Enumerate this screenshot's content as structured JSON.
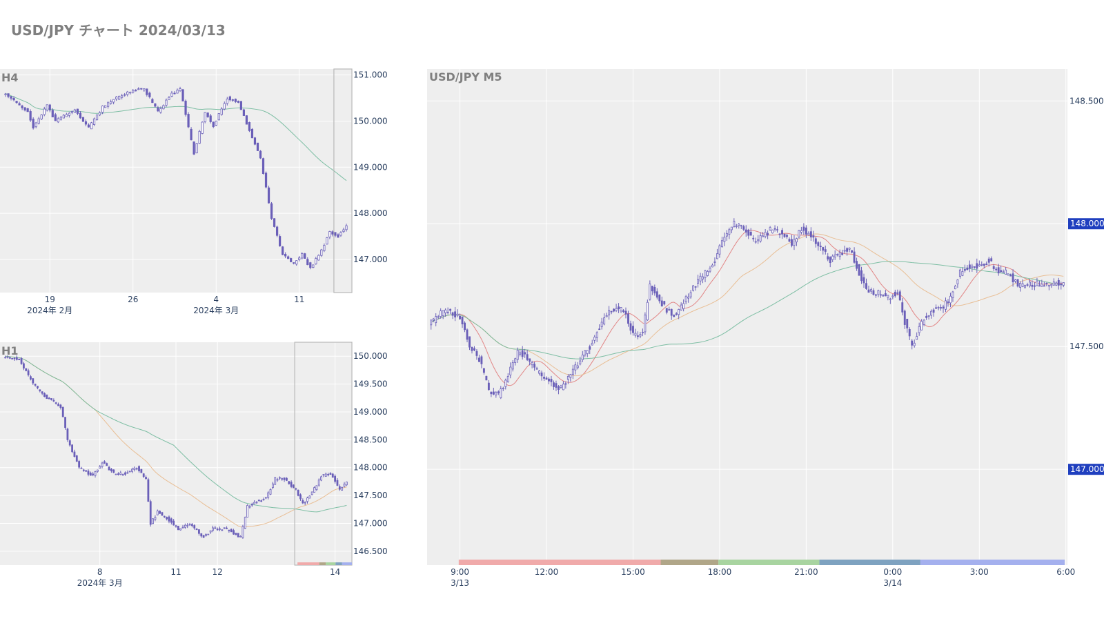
{
  "page": {
    "title": "USD/JPY チャート 2024/03/13"
  },
  "colors": {
    "plot_bg": "#eeeeee",
    "grid": "#ffffff",
    "candle": "#6a5fb8",
    "ma_short": "#e07a7a",
    "ma_mid": "#e8b88a",
    "ma_long": "#6fb89a",
    "badge": "#1f3fbf",
    "range_box": "#b8b8b8",
    "sessions": [
      "#f0aaaa",
      "#b0a688",
      "#a8d4a0",
      "#7ea2c0",
      "#a4b0ee"
    ]
  },
  "chart_data": [
    {
      "id": "h4",
      "type": "candlestick",
      "title": "H4",
      "ylim": [
        146.28,
        151.13
      ],
      "y_ticks": [
        151.0,
        150.0,
        149.0,
        148.0,
        147.0
      ],
      "y_tick_labels": [
        "151.000",
        "150.000",
        "149.000",
        "148.000",
        "147.000"
      ],
      "x_ticks": [
        {
          "i": 16,
          "label": "19",
          "sub": "2024年 2月"
        },
        {
          "i": 46,
          "label": "26",
          "sub": ""
        },
        {
          "i": 76,
          "label": "4",
          "sub": "2024年 3月"
        },
        {
          "i": 106,
          "label": "11",
          "sub": ""
        }
      ],
      "n": 124,
      "ma_lines": [
        "ma_long"
      ],
      "highlight_from": 119,
      "anchors": [
        [
          0,
          150.6
        ],
        [
          8,
          150.2
        ],
        [
          10,
          149.85
        ],
        [
          15,
          150.35
        ],
        [
          18,
          150.0
        ],
        [
          25,
          150.25
        ],
        [
          30,
          149.85
        ],
        [
          35,
          150.3
        ],
        [
          40,
          150.5
        ],
        [
          45,
          150.65
        ],
        [
          50,
          150.7
        ],
        [
          55,
          150.2
        ],
        [
          60,
          150.6
        ],
        [
          63,
          150.7
        ],
        [
          66,
          149.85
        ],
        [
          68,
          149.3
        ],
        [
          72,
          150.2
        ],
        [
          75,
          149.9
        ],
        [
          80,
          150.5
        ],
        [
          84,
          150.4
        ],
        [
          88,
          149.8
        ],
        [
          92,
          149.2
        ],
        [
          96,
          147.9
        ],
        [
          100,
          147.1
        ],
        [
          104,
          146.9
        ],
        [
          107,
          147.1
        ],
        [
          110,
          146.8
        ],
        [
          114,
          147.2
        ],
        [
          117,
          147.6
        ],
        [
          120,
          147.5
        ],
        [
          123,
          147.75
        ]
      ]
    },
    {
      "id": "h1",
      "type": "candlestick",
      "title": "H1",
      "ylim": [
        146.25,
        150.25
      ],
      "y_ticks": [
        150.0,
        149.5,
        149.0,
        148.5,
        148.0,
        147.5,
        147.0,
        146.5
      ],
      "y_tick_labels": [
        "150.000",
        "149.500",
        "149.000",
        "148.500",
        "148.000",
        "147.500",
        "147.000",
        "146.500"
      ],
      "x_ticks": [
        {
          "i": 41,
          "label": "8",
          "sub": "2024年 3月"
        },
        {
          "i": 74,
          "label": "11",
          "sub": ""
        },
        {
          "i": 92,
          "label": "12",
          "sub": ""
        },
        {
          "i": 143,
          "label": "14",
          "sub": ""
        }
      ],
      "n": 149,
      "ma_lines": [
        "ma_mid",
        "ma_long"
      ],
      "highlight_from": 126,
      "session_strip": true,
      "anchors": [
        [
          0,
          150.0
        ],
        [
          6,
          149.95
        ],
        [
          12,
          149.5
        ],
        [
          18,
          149.25
        ],
        [
          24,
          149.1
        ],
        [
          27,
          148.5
        ],
        [
          32,
          148.0
        ],
        [
          38,
          147.85
        ],
        [
          42,
          148.1
        ],
        [
          47,
          147.9
        ],
        [
          52,
          147.9
        ],
        [
          57,
          148.0
        ],
        [
          61,
          147.8
        ],
        [
          63,
          147.0
        ],
        [
          66,
          147.2
        ],
        [
          70,
          147.1
        ],
        [
          75,
          146.9
        ],
        [
          80,
          147.0
        ],
        [
          86,
          146.75
        ],
        [
          90,
          146.9
        ],
        [
          96,
          146.9
        ],
        [
          102,
          146.75
        ],
        [
          105,
          147.3
        ],
        [
          109,
          147.4
        ],
        [
          113,
          147.45
        ],
        [
          117,
          147.8
        ],
        [
          121,
          147.8
        ],
        [
          126,
          147.6
        ],
        [
          129,
          147.35
        ],
        [
          133,
          147.55
        ],
        [
          137,
          147.85
        ],
        [
          141,
          147.9
        ],
        [
          145,
          147.6
        ],
        [
          148,
          147.75
        ]
      ]
    },
    {
      "id": "m5",
      "type": "candlestick",
      "title": "USD/JPY M5",
      "ylim": [
        146.61,
        148.63
      ],
      "y_ticks": [
        148.5,
        148.0,
        147.5,
        147.0
      ],
      "y_tick_labels": [
        "148.500",
        "148.000",
        "147.500",
        "147.000"
      ],
      "badges": [
        {
          "value": 148.0,
          "label": "148.000"
        },
        {
          "value": 147.0,
          "label": "147.000"
        }
      ],
      "x_ticks": [
        {
          "i": 12,
          "label": "9:00",
          "sub": "3/13"
        },
        {
          "i": 48,
          "label": "12:00",
          "sub": ""
        },
        {
          "i": 84,
          "label": "15:00",
          "sub": ""
        },
        {
          "i": 120,
          "label": "18:00",
          "sub": ""
        },
        {
          "i": 156,
          "label": "21:00",
          "sub": ""
        },
        {
          "i": 192,
          "label": "0:00",
          "sub": "3/14"
        },
        {
          "i": 228,
          "label": "3:00",
          "sub": ""
        },
        {
          "i": 264,
          "label": "6:00",
          "sub": ""
        }
      ],
      "n": 264,
      "ma_lines": [
        "ma_short",
        "ma_mid",
        "ma_long"
      ],
      "sessions": [
        [
          12,
          96
        ],
        [
          96,
          120
        ],
        [
          120,
          162
        ],
        [
          162,
          204
        ],
        [
          204,
          264
        ]
      ],
      "anchors": [
        [
          0,
          147.6
        ],
        [
          6,
          147.65
        ],
        [
          12,
          147.62
        ],
        [
          16,
          147.5
        ],
        [
          20,
          147.45
        ],
        [
          24,
          147.32
        ],
        [
          28,
          147.3
        ],
        [
          32,
          147.38
        ],
        [
          36,
          147.48
        ],
        [
          40,
          147.45
        ],
        [
          44,
          147.4
        ],
        [
          50,
          147.35
        ],
        [
          54,
          147.33
        ],
        [
          58,
          147.38
        ],
        [
          62,
          147.45
        ],
        [
          66,
          147.5
        ],
        [
          70,
          147.58
        ],
        [
          74,
          147.65
        ],
        [
          80,
          147.65
        ],
        [
          84,
          147.55
        ],
        [
          88,
          147.55
        ],
        [
          91,
          147.75
        ],
        [
          94,
          147.7
        ],
        [
          98,
          147.65
        ],
        [
          102,
          147.62
        ],
        [
          106,
          147.7
        ],
        [
          110,
          147.75
        ],
        [
          114,
          147.8
        ],
        [
          118,
          147.85
        ],
        [
          122,
          147.95
        ],
        [
          126,
          148.0
        ],
        [
          130,
          147.98
        ],
        [
          134,
          147.93
        ],
        [
          138,
          147.95
        ],
        [
          142,
          147.98
        ],
        [
          146,
          147.96
        ],
        [
          150,
          147.92
        ],
        [
          154,
          147.98
        ],
        [
          158,
          147.95
        ],
        [
          162,
          147.9
        ],
        [
          166,
          147.85
        ],
        [
          170,
          147.88
        ],
        [
          174,
          147.9
        ],
        [
          178,
          147.8
        ],
        [
          182,
          147.72
        ],
        [
          186,
          147.72
        ],
        [
          190,
          147.7
        ],
        [
          194,
          147.72
        ],
        [
          197,
          147.6
        ],
        [
          200,
          147.5
        ],
        [
          204,
          147.6
        ],
        [
          208,
          147.65
        ],
        [
          212,
          147.65
        ],
        [
          216,
          147.7
        ],
        [
          220,
          147.8
        ],
        [
          224,
          147.83
        ],
        [
          228,
          147.83
        ],
        [
          232,
          147.85
        ],
        [
          236,
          147.8
        ],
        [
          240,
          147.8
        ],
        [
          244,
          147.75
        ]
      ]
    }
  ]
}
